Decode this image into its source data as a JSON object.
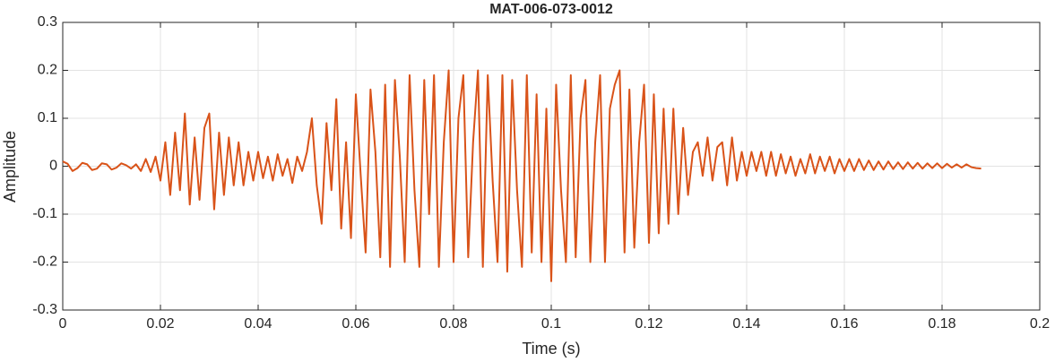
{
  "chart_data": {
    "type": "line",
    "title": "MAT-006-073-0012",
    "xlabel": "Time (s)",
    "ylabel": "Amplitude",
    "color": "#d95319",
    "grid": true,
    "xlim": [
      0,
      0.2
    ],
    "xticks": [
      0,
      0.02,
      0.04,
      0.06,
      0.08,
      0.1,
      0.12,
      0.14,
      0.16,
      0.18,
      0.2
    ],
    "ylim": [
      -0.3,
      0.3
    ],
    "yticks": [
      -0.3,
      -0.2,
      -0.1,
      0,
      0.1,
      0.2,
      0.3
    ],
    "x": [
      0,
      0.001,
      0.002,
      0.003,
      0.004,
      0.005,
      0.006,
      0.007,
      0.008,
      0.009,
      0.01,
      0.011,
      0.012,
      0.013,
      0.014,
      0.015,
      0.016,
      0.017,
      0.018,
      0.019,
      0.02,
      0.021,
      0.022,
      0.023,
      0.024,
      0.025,
      0.026,
      0.027,
      0.028,
      0.029,
      0.03,
      0.031,
      0.032,
      0.033,
      0.034,
      0.035,
      0.036,
      0.037,
      0.038,
      0.039,
      0.04,
      0.041,
      0.042,
      0.043,
      0.044,
      0.045,
      0.046,
      0.047,
      0.048,
      0.049,
      0.05,
      0.051,
      0.052,
      0.053,
      0.054,
      0.055,
      0.056,
      0.057,
      0.058,
      0.059,
      0.06,
      0.061,
      0.062,
      0.063,
      0.064,
      0.065,
      0.066,
      0.067,
      0.068,
      0.069,
      0.07,
      0.071,
      0.072,
      0.073,
      0.074,
      0.075,
      0.076,
      0.077,
      0.078,
      0.079,
      0.08,
      0.081,
      0.082,
      0.083,
      0.084,
      0.085,
      0.086,
      0.087,
      0.088,
      0.089,
      0.09,
      0.091,
      0.092,
      0.093,
      0.094,
      0.095,
      0.096,
      0.097,
      0.098,
      0.099,
      0.1,
      0.101,
      0.102,
      0.103,
      0.104,
      0.105,
      0.106,
      0.107,
      0.108,
      0.109,
      0.11,
      0.111,
      0.112,
      0.113,
      0.114,
      0.115,
      0.116,
      0.117,
      0.118,
      0.119,
      0.12,
      0.121,
      0.122,
      0.123,
      0.124,
      0.125,
      0.126,
      0.127,
      0.128,
      0.129,
      0.13,
      0.131,
      0.132,
      0.133,
      0.134,
      0.135,
      0.136,
      0.137,
      0.138,
      0.139,
      0.14,
      0.141,
      0.142,
      0.143,
      0.144,
      0.145,
      0.146,
      0.147,
      0.148,
      0.149,
      0.15,
      0.151,
      0.152,
      0.153,
      0.154,
      0.155,
      0.156,
      0.157,
      0.158,
      0.159,
      0.16,
      0.161,
      0.162,
      0.163,
      0.164,
      0.165,
      0.166,
      0.167,
      0.168,
      0.169,
      0.17,
      0.171,
      0.172,
      0.173,
      0.174,
      0.175,
      0.176,
      0.177,
      0.178,
      0.179,
      0.18,
      0.181,
      0.182,
      0.183,
      0.184,
      0.185,
      0.186,
      0.187,
      0.188
    ],
    "values": [
      0.01,
      0.005,
      -0.01,
      -0.004,
      0.007,
      0.004,
      -0.008,
      -0.005,
      0.006,
      0.004,
      -0.007,
      -0.003,
      0.006,
      0.002,
      -0.005,
      0.004,
      -0.01,
      0.015,
      -0.012,
      0.02,
      -0.03,
      0.05,
      -0.06,
      0.07,
      -0.05,
      0.11,
      -0.08,
      0.06,
      -0.07,
      0.08,
      0.11,
      -0.09,
      0.07,
      -0.06,
      0.06,
      -0.04,
      0.05,
      -0.04,
      0.03,
      -0.03,
      0.03,
      -0.025,
      0.02,
      -0.03,
      0.025,
      -0.02,
      0.015,
      -0.035,
      0.02,
      -0.01,
      0.03,
      0.1,
      -0.04,
      -0.12,
      0.09,
      -0.05,
      0.14,
      -0.13,
      0.05,
      -0.15,
      0.15,
      -0.02,
      -0.18,
      0.16,
      0.03,
      -0.19,
      0.17,
      -0.21,
      0.18,
      0.02,
      -0.2,
      0.19,
      -0.05,
      -0.21,
      0.18,
      -0.1,
      0.19,
      -0.21,
      0.05,
      0.2,
      -0.2,
      0.1,
      0.19,
      -0.19,
      0.05,
      0.2,
      -0.21,
      0.19,
      -0.03,
      -0.2,
      0.19,
      -0.22,
      0.18,
      -0.05,
      -0.21,
      0.19,
      -0.18,
      0.15,
      -0.2,
      0.12,
      -0.24,
      0.17,
      -0.05,
      -0.2,
      0.19,
      -0.19,
      0.1,
      0.18,
      -0.2,
      0.05,
      0.19,
      -0.2,
      0.12,
      0.17,
      0.2,
      -0.18,
      0.16,
      -0.17,
      0.05,
      0.17,
      -0.16,
      0.15,
      -0.14,
      0.12,
      -0.12,
      0.12,
      -0.1,
      0.08,
      -0.06,
      0.03,
      0.05,
      -0.02,
      0.06,
      -0.03,
      0.04,
      0.05,
      -0.04,
      0.06,
      -0.03,
      0.03,
      -0.02,
      0.03,
      -0.01,
      0.03,
      -0.02,
      0.03,
      -0.02,
      0.025,
      -0.015,
      0.02,
      -0.02,
      0.015,
      -0.015,
      0.025,
      -0.015,
      0.02,
      -0.01,
      0.02,
      -0.015,
      0.015,
      -0.01,
      0.015,
      -0.01,
      0.015,
      -0.008,
      0.012,
      -0.008,
      0.01,
      -0.007,
      0.01,
      -0.006,
      0.008,
      -0.006,
      0.008,
      -0.005,
      0.007,
      -0.005,
      0.006,
      -0.004,
      0.006,
      -0.004,
      0.005,
      -0.003,
      0.004,
      -0.003,
      0.004,
      -0.002,
      -0.004,
      -0.005
    ]
  }
}
